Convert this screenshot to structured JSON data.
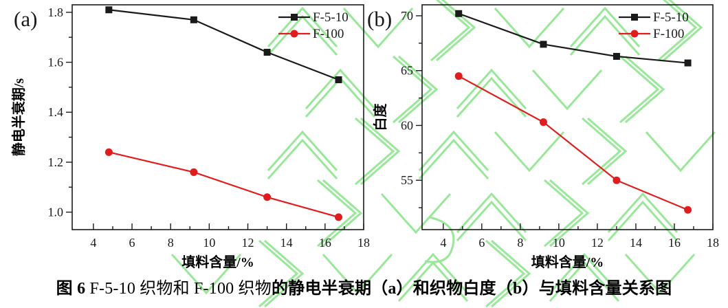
{
  "colors": {
    "series_black": "#1a1a1a",
    "series_red": "#e41b1d",
    "watermark_green": "#97e897",
    "text": "#000000"
  },
  "caption": {
    "fig_label_bold": "图 6",
    "regular_part": " F-5-10 织物和 F-100 织物",
    "bold_part": "的静电半衰期（a）和织物白度（b）与填料含量关系图"
  },
  "chart_data": [
    {
      "type": "line",
      "panel_label": "(a)",
      "xlabel": "填料含量/%",
      "ylabel": "静电半衰期/s",
      "xlim": [
        2.9,
        18
      ],
      "ylim": [
        0.93,
        1.83
      ],
      "x_ticks": {
        "values": [
          4,
          6,
          8,
          10,
          12,
          14,
          16,
          18
        ],
        "labels": [
          "4",
          "6",
          "8",
          "10",
          "12",
          "14",
          "16",
          "18"
        ],
        "minor": [
          5,
          7,
          9,
          11,
          13,
          15,
          17
        ]
      },
      "y_ticks": {
        "values": [
          1.0,
          1.2,
          1.4,
          1.6,
          1.8
        ],
        "labels": [
          "1.0",
          "1.2",
          "1.4",
          "1.6",
          "1.8"
        ],
        "minor": [
          1.1,
          1.3,
          1.5,
          1.7
        ]
      },
      "x": [
        4.8,
        9.2,
        13.0,
        16.7
      ],
      "series": [
        {
          "name": "F-5-10",
          "color": "#1a1a1a",
          "marker": "square",
          "values": [
            1.81,
            1.77,
            1.64,
            1.53
          ]
        },
        {
          "name": "F-100",
          "color": "#e41b1d",
          "marker": "circle",
          "values": [
            1.24,
            1.16,
            1.06,
            0.98
          ]
        }
      ],
      "legend": {
        "position": "top-right",
        "entries": [
          "F-5-10",
          "F-100"
        ]
      },
      "grid": false
    },
    {
      "type": "line",
      "panel_label": "(b)",
      "xlabel": "填料含量/%",
      "ylabel": "白度",
      "xlim": [
        2.9,
        18
      ],
      "ylim": [
        50.5,
        71
      ],
      "x_ticks": {
        "values": [
          4,
          6,
          8,
          10,
          12,
          14,
          16,
          18
        ],
        "labels": [
          "4",
          "6",
          "8",
          "10",
          "12",
          "14",
          "16",
          "18"
        ],
        "minor": [
          5,
          7,
          9,
          11,
          13,
          15,
          17
        ]
      },
      "y_ticks": {
        "values": [
          55,
          60,
          65,
          70
        ],
        "labels": [
          "55",
          "60",
          "65",
          "70"
        ],
        "minor": [
          52.5,
          57.5,
          62.5,
          67.5
        ]
      },
      "x": [
        4.8,
        9.2,
        13.0,
        16.7
      ],
      "series": [
        {
          "name": "F-5-10",
          "color": "#1a1a1a",
          "marker": "square",
          "values": [
            70.2,
            67.4,
            66.3,
            65.7
          ]
        },
        {
          "name": "F-100",
          "color": "#e41b1d",
          "marker": "circle",
          "values": [
            64.5,
            60.3,
            55.0,
            52.3
          ]
        }
      ],
      "legend": {
        "position": "top-right",
        "entries": [
          "F-5-10",
          "F-100"
        ]
      },
      "grid": false
    }
  ]
}
